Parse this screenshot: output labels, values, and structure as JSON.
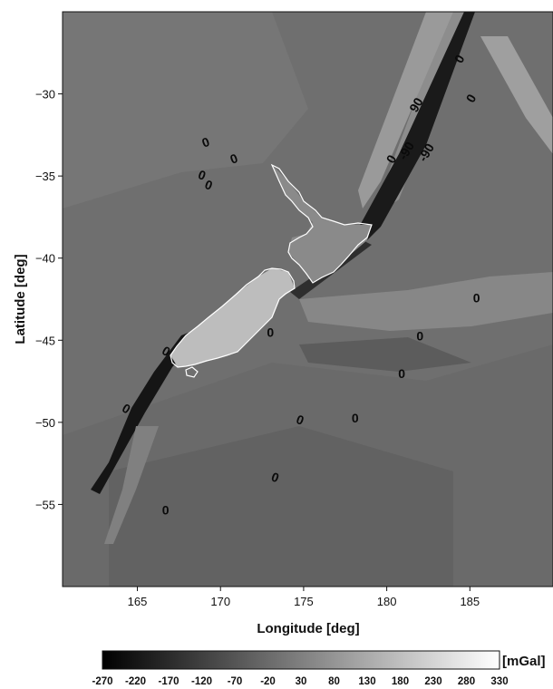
{
  "map": {
    "type": "gravity-anomaly-map",
    "x_axis_title": "Longitude [deg]",
    "y_axis_title": "Latitude [deg]",
    "x_range": [
      160.5,
      190
    ],
    "y_range": [
      -60,
      -25
    ],
    "x_ticks": [
      {
        "value": 165,
        "label": "165"
      },
      {
        "value": 170,
        "label": "170"
      },
      {
        "value": 175,
        "label": "175"
      },
      {
        "value": 180,
        "label": "180"
      },
      {
        "value": 185,
        "label": "185"
      }
    ],
    "y_ticks": [
      {
        "value": -30,
        "label": "−30"
      },
      {
        "value": -35,
        "label": "−35"
      },
      {
        "value": -40,
        "label": "−40"
      },
      {
        "value": -45,
        "label": "−45"
      },
      {
        "value": -50,
        "label": "−50"
      },
      {
        "value": -55,
        "label": "−55"
      }
    ],
    "contour_labels": [
      {
        "text": "0",
        "lon": 169.2,
        "lat": -33.2,
        "angle": -20
      },
      {
        "text": "0",
        "lon": 170.9,
        "lat": -34.2,
        "angle": -20
      },
      {
        "text": "0",
        "lon": 168.8,
        "lat": -35.2,
        "angle": 20
      },
      {
        "text": "0",
        "lon": 169.2,
        "lat": -35.8,
        "angle": 20
      },
      {
        "text": "0",
        "lon": 184.6,
        "lat": -28.0,
        "angle": -60
      },
      {
        "text": "0",
        "lon": 185.3,
        "lat": -30.4,
        "angle": -60
      },
      {
        "text": "90",
        "lon": 182.0,
        "lat": -30.8,
        "angle": -60
      },
      {
        "text": "-90",
        "lon": 181.4,
        "lat": -33.6,
        "angle": -60
      },
      {
        "text": "-90",
        "lon": 182.6,
        "lat": -33.7,
        "angle": -60
      },
      {
        "text": "0",
        "lon": 180.5,
        "lat": -34.1,
        "angle": -60
      },
      {
        "text": "0",
        "lon": 185.4,
        "lat": -42.7,
        "angle": 0
      },
      {
        "text": "0",
        "lon": 166.6,
        "lat": -45.9,
        "angle": 30
      },
      {
        "text": "0",
        "lon": 173.0,
        "lat": -44.8,
        "angle": 0
      },
      {
        "text": "0",
        "lon": 182.0,
        "lat": -45.0,
        "angle": 0
      },
      {
        "text": "0",
        "lon": 180.9,
        "lat": -47.3,
        "angle": 0
      },
      {
        "text": "0",
        "lon": 164.2,
        "lat": -49.4,
        "angle": 30
      },
      {
        "text": "0",
        "lon": 174.7,
        "lat": -50.1,
        "angle": 20
      },
      {
        "text": "0",
        "lon": 178.1,
        "lat": -50.0,
        "angle": 0
      },
      {
        "text": "0",
        "lon": 173.2,
        "lat": -53.6,
        "angle": 20
      },
      {
        "text": "0",
        "lon": 166.7,
        "lat": -55.6,
        "angle": 0
      }
    ]
  },
  "colorbar": {
    "unit": "[mGal]",
    "min": -270,
    "max": 330,
    "tick_labels": [
      "-270",
      "-220",
      "-170",
      "-120",
      "-70",
      "-20",
      "30",
      "80",
      "130",
      "180",
      "230",
      "280",
      "330"
    ]
  },
  "colors": {
    "background_field": "#6f6f6f",
    "coastline": "#ffffff",
    "text": "#111111"
  }
}
